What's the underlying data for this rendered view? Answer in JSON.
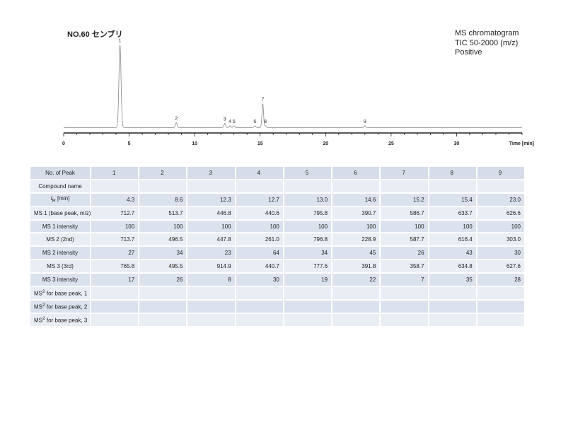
{
  "title": "NO.60 センブリ",
  "info_lines": [
    "MS chromatogram",
    "TIC 50-2000 (m/z)",
    "Positive"
  ],
  "chart_data": {
    "type": "line",
    "title": "NO.60 センブリ",
    "xlabel": "Time [min]",
    "ylabel": "",
    "xlim": [
      0,
      35
    ],
    "x_ticks": [
      0,
      5,
      10,
      15,
      20,
      25,
      30
    ],
    "grid": false,
    "peaks": [
      {
        "label": "1",
        "x": 4.3,
        "y": 100
      },
      {
        "label": "2",
        "x": 8.6,
        "y": 6
      },
      {
        "label": "3",
        "x": 12.3,
        "y": 5
      },
      {
        "label": "4",
        "x": 12.7,
        "y": 2
      },
      {
        "label": "5",
        "x": 13.0,
        "y": 2
      },
      {
        "label": "6",
        "x": 14.6,
        "y": 2
      },
      {
        "label": "7",
        "x": 15.2,
        "y": 29
      },
      {
        "label": "8",
        "x": 15.4,
        "y": 2
      },
      {
        "label": "9",
        "x": 23.0,
        "y": 2
      }
    ]
  },
  "table": {
    "header_label": "No. of Peak",
    "peaks": [
      "1",
      "2",
      "3",
      "4",
      "5",
      "6",
      "7",
      "8",
      "9"
    ],
    "rows": [
      {
        "label": "Compound name",
        "values": [
          "",
          "",
          "",
          "",
          "",
          "",
          "",
          "",
          ""
        ]
      },
      {
        "label": "tR [min]",
        "label_html": "<i>t</i><sub>R</sub> [min]",
        "values": [
          "4.3",
          "8.6",
          "12.3",
          "12.7",
          "13.0",
          "14.6",
          "15.2",
          "15.4",
          "23.0"
        ]
      },
      {
        "label": "MS 1 (base peak, m/z)",
        "values": [
          "712.7",
          "513.7",
          "446.8",
          "440.6",
          "795.8",
          "390.7",
          "586.7",
          "633.7",
          "626.6"
        ]
      },
      {
        "label": "MS 1 intensity",
        "values": [
          "100",
          "100",
          "100",
          "100",
          "100",
          "100",
          "100",
          "100",
          "100"
        ]
      },
      {
        "label": "MS 2 (2nd)",
        "values": [
          "713.7",
          "496.5",
          "447.8",
          "261.0",
          "796.8",
          "228.9",
          "587.7",
          "616.4",
          "303.0"
        ]
      },
      {
        "label": "MS 2 intensity",
        "values": [
          "27",
          "34",
          "23",
          "64",
          "34",
          "45",
          "26",
          "43",
          "30"
        ]
      },
      {
        "label": "MS 3 (3rd)",
        "values": [
          "765.8",
          "495.5",
          "914.9",
          "440.7",
          "777.6",
          "391.8",
          "358.7",
          "634.8",
          "627.6"
        ]
      },
      {
        "label": "MS 3 intensity",
        "values": [
          "17",
          "26",
          "8",
          "30",
          "19",
          "22",
          "7",
          "35",
          "28"
        ]
      },
      {
        "label": "MS2 for base peak, 1",
        "label_html": "MS<sup>2</sup> for base peak, 1",
        "values": [
          "",
          "",
          "",
          "",
          "",
          "",
          "",
          "",
          ""
        ]
      },
      {
        "label": "MS2 for base peak, 2",
        "label_html": "MS<sup>2</sup> for base peak, 2",
        "values": [
          "",
          "",
          "",
          "",
          "",
          "",
          "",
          "",
          ""
        ]
      },
      {
        "label": "MS2 for base peak, 3",
        "label_html": "MS<sup>2</sup> for base peak, 3",
        "values": [
          "",
          "",
          "",
          "",
          "",
          "",
          "",
          "",
          ""
        ]
      }
    ]
  }
}
